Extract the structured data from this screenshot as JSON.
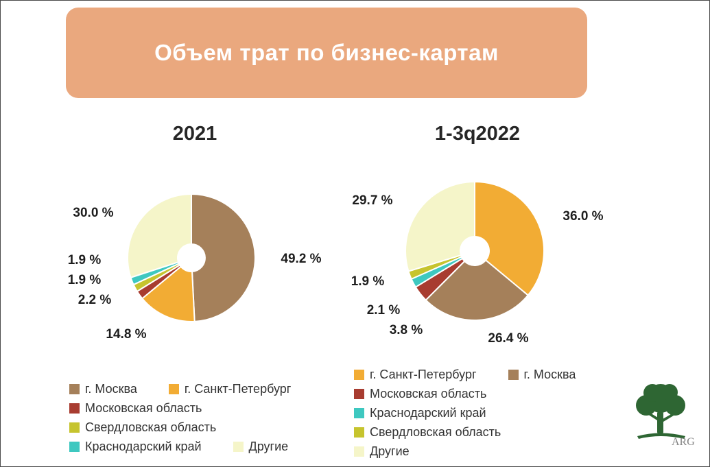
{
  "header": {
    "title": "Объем трат по бизнес-картам"
  },
  "chart_data": [
    {
      "type": "pie",
      "subtype": "donut",
      "title": "2021",
      "categories": [
        "г. Москва",
        "г. Санкт-Петербург",
        "Московская область",
        "Свердловская область",
        "Краснодарский край",
        "Другие"
      ],
      "values": [
        49.2,
        14.8,
        2.2,
        1.9,
        1.9,
        30.0
      ],
      "labels": [
        "49.2 %",
        "14.8 %",
        "2.2 %",
        "1.9 %",
        "1.9 %",
        "30.0 %"
      ],
      "colors": [
        "#A5805A",
        "#F2AC34",
        "#A83C30",
        "#C6C42E",
        "#3EC8C0",
        "#F5F5C9"
      ],
      "start_angle_deg": 0,
      "direction": "clockwise",
      "legend_position": "bottom"
    },
    {
      "type": "pie",
      "subtype": "donut",
      "title": "1-3q2022",
      "categories": [
        "г. Санкт-Петербург",
        "г. Москва",
        "Московская область",
        "Краснодарский край",
        "Свердловская область",
        "Другие"
      ],
      "values": [
        36.0,
        26.4,
        3.8,
        2.1,
        1.9,
        29.7
      ],
      "labels": [
        "36.0 %",
        "26.4 %",
        "3.8 %",
        "2.1 %",
        "1.9 %",
        "29.7 %"
      ],
      "colors": [
        "#F2AC34",
        "#A5805A",
        "#A83C30",
        "#3EC8C0",
        "#C6C42E",
        "#F5F5C9"
      ],
      "start_angle_deg": 0,
      "direction": "clockwise",
      "legend_position": "bottom"
    }
  ],
  "logo": {
    "text": "ARG",
    "color": "#2E6633"
  },
  "theme": {
    "header_bg": "#EAA87E",
    "header_text": "#FFFFFF",
    "text": "#1d1d1d"
  }
}
